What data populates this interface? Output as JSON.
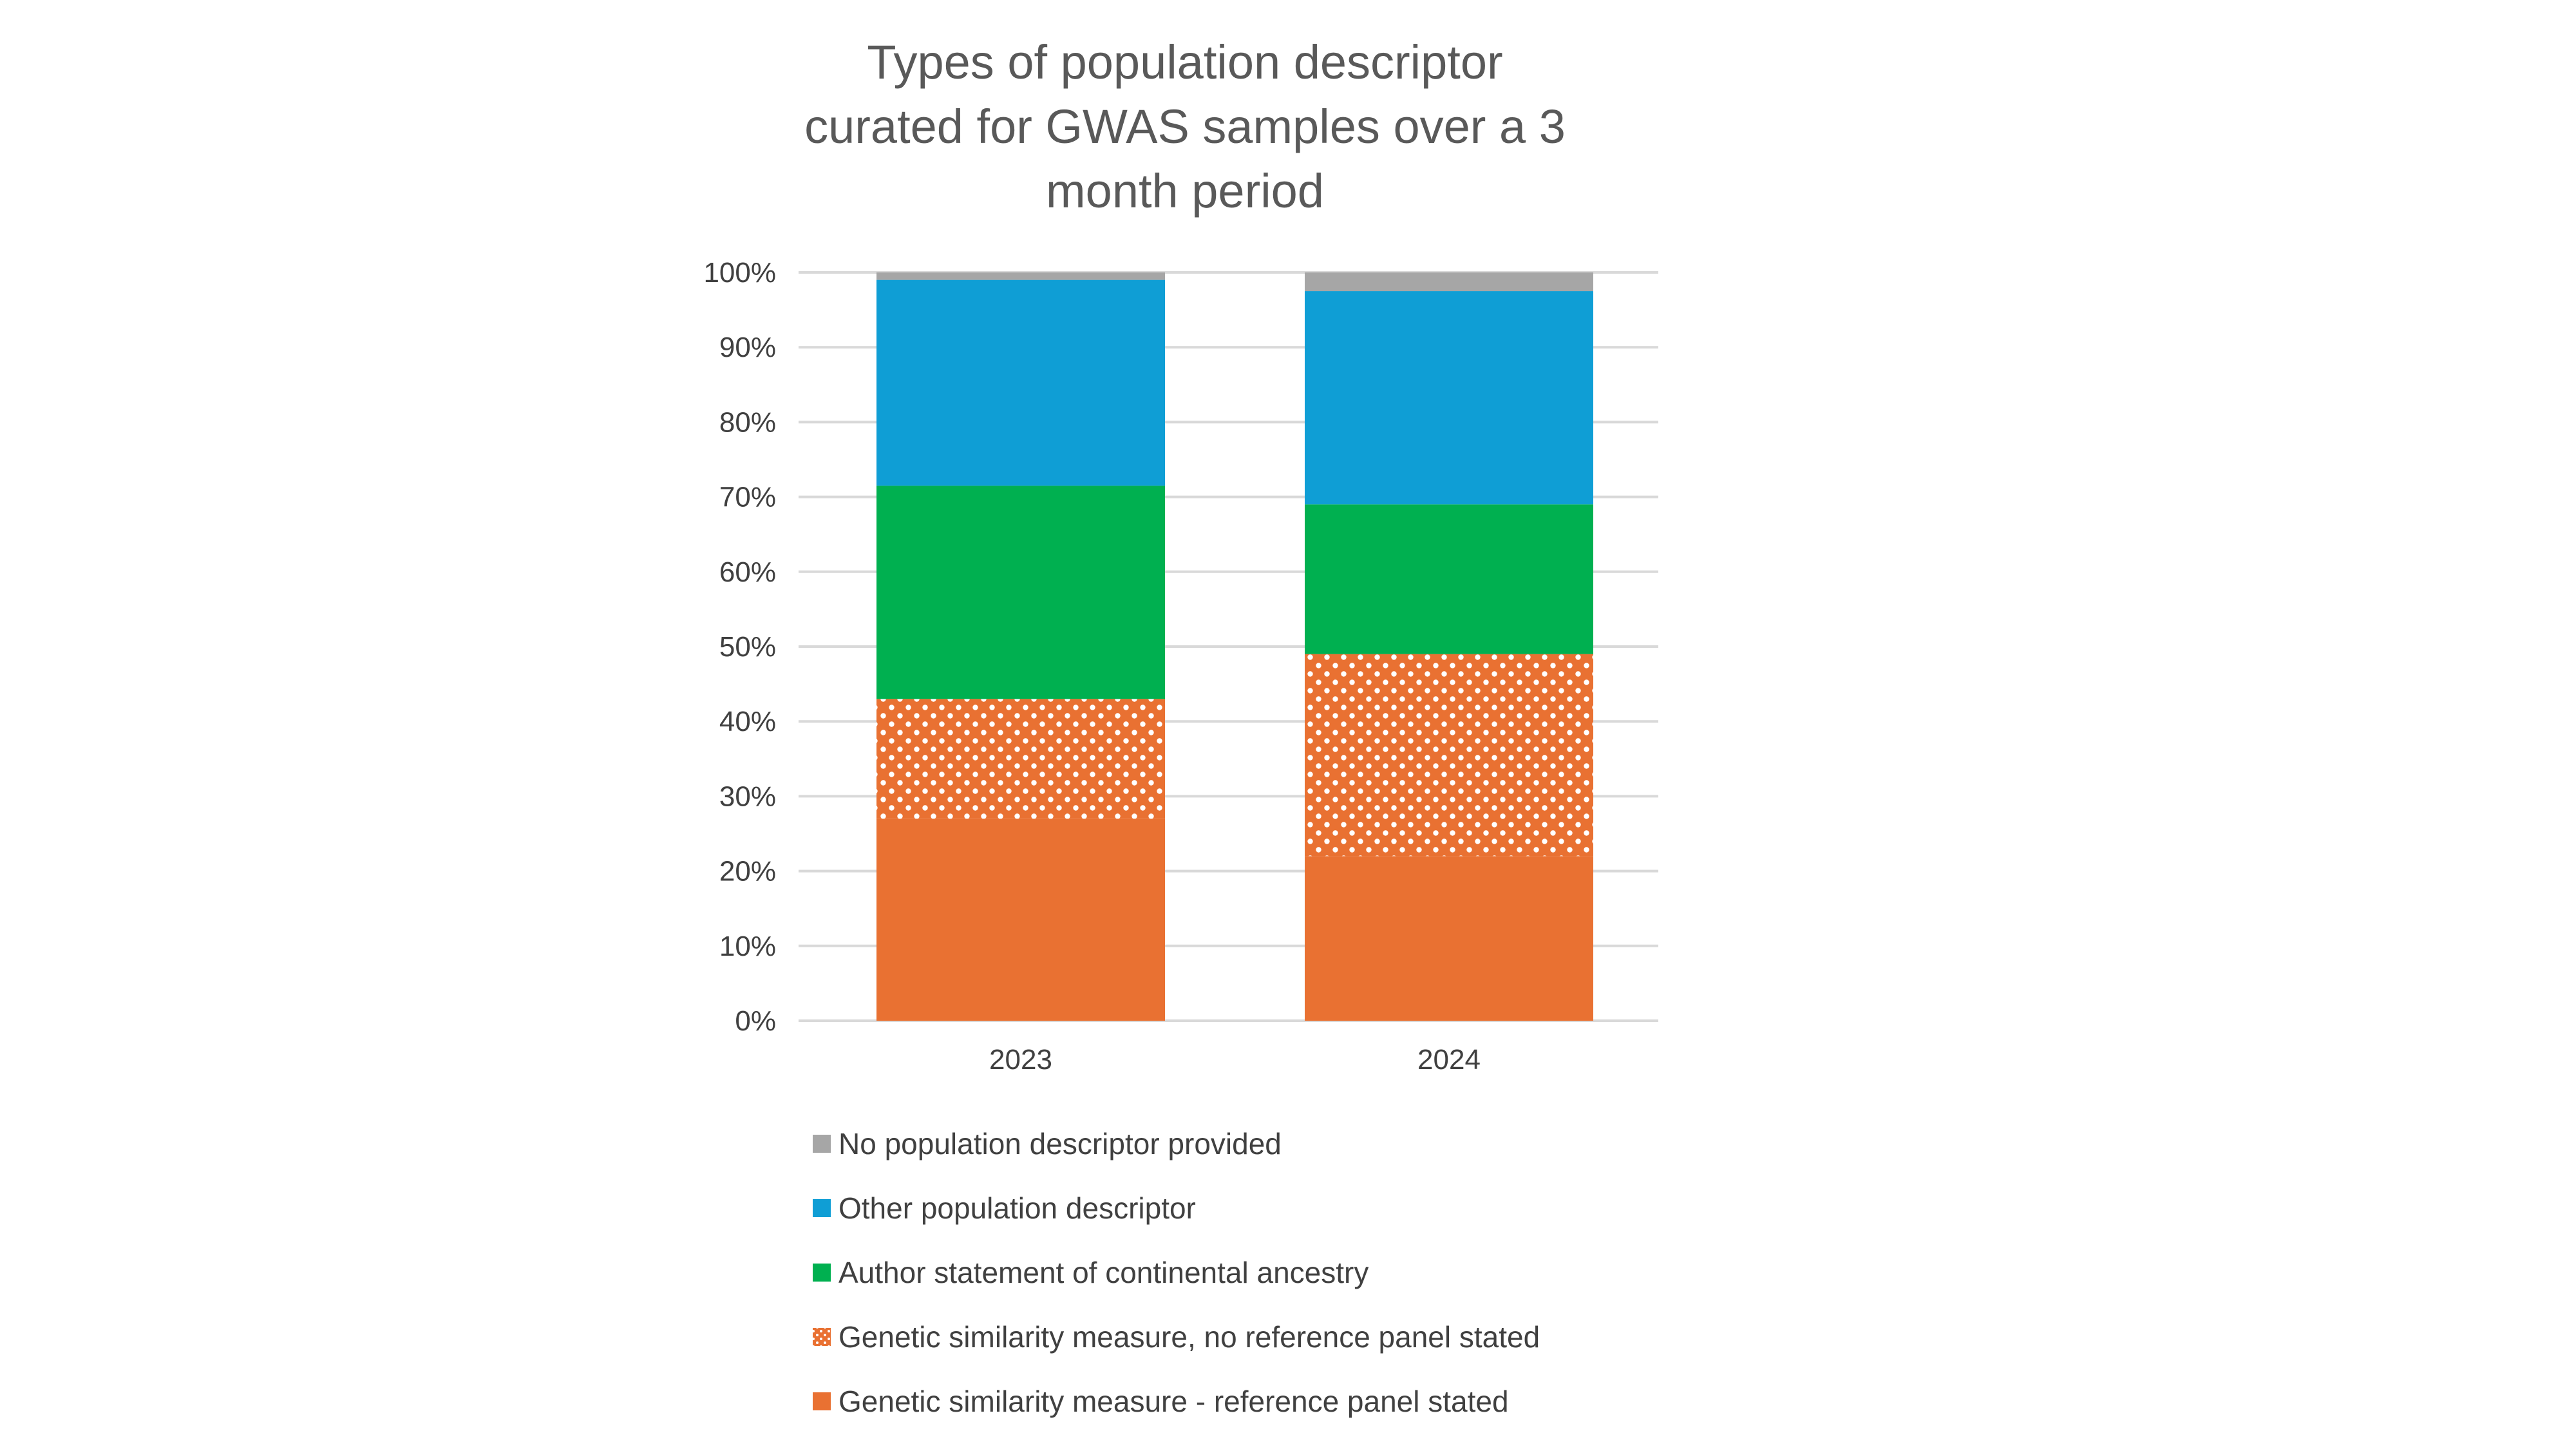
{
  "chart_data": {
    "type": "bar",
    "stacked": true,
    "title_lines": [
      "Types of population descriptor",
      "curated for GWAS samples over a 3",
      "month period"
    ],
    "categories": [
      "2023",
      "2024"
    ],
    "y_tick_labels": [
      "0%",
      "10%",
      "20%",
      "30%",
      "40%",
      "50%",
      "60%",
      "70%",
      "80%",
      "90%",
      "100%"
    ],
    "ylim": [
      0,
      100
    ],
    "y_unit": "%",
    "grid": true,
    "legend_position": "bottom",
    "series": [
      {
        "name": "Genetic similarity measure - reference panel stated",
        "values": [
          27,
          22
        ],
        "color": "#E97132",
        "pattern": "solid"
      },
      {
        "name": "Genetic similarity measure, no reference panel stated",
        "values": [
          16,
          27
        ],
        "color": "#E97132",
        "pattern": "dotted"
      },
      {
        "name": "Author statement of continental ancestry",
        "values": [
          28.5,
          20
        ],
        "color": "#00B050",
        "pattern": "solid"
      },
      {
        "name": "Other population descriptor",
        "values": [
          27.5,
          28.5
        ],
        "color": "#0F9ED5",
        "pattern": "solid"
      },
      {
        "name": "No population descriptor provided",
        "values": [
          1,
          2.5
        ],
        "color": "#A6A6A6",
        "pattern": "solid"
      }
    ],
    "legend_order": [
      "No population descriptor provided",
      "Other population descriptor",
      "Author statement of continental ancestry",
      "Genetic similarity measure, no reference panel stated",
      "Genetic similarity measure - reference panel stated"
    ]
  }
}
